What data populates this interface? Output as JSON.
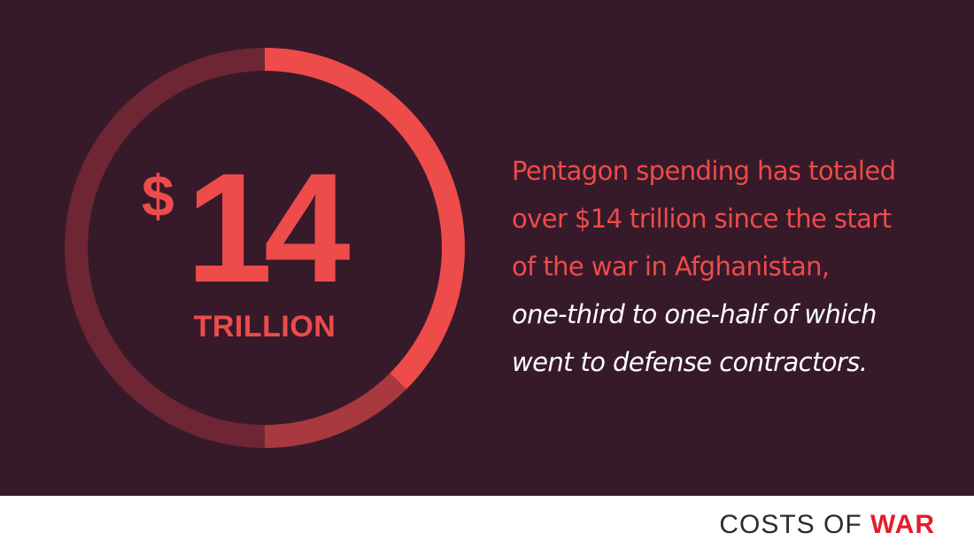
{
  "chart_data": {
    "type": "pie",
    "title": "",
    "big_number": "14",
    "currency_symbol": "$",
    "unit": "TRILLION",
    "slices": [
      {
        "value": 0.375,
        "color": "#ee4b4b"
      },
      {
        "value": 0.125,
        "color": "#a8393e"
      },
      {
        "value": 0.5,
        "color": "#6e2534"
      }
    ]
  },
  "caption": {
    "line1": "Pentagon spending has totaled",
    "line2": "over $14 trillion since the start",
    "line3": "of the war in Afghanistan,",
    "line4": "one-third to one-half of which",
    "line5": "went to defense contractors."
  },
  "brand": {
    "left": "COSTS OF",
    "right": "WAR"
  },
  "colors": {
    "background": "#361a2a",
    "accent": "#ee4b4b",
    "footer": "#ffffff",
    "brand_accent": "#e21d2c"
  }
}
